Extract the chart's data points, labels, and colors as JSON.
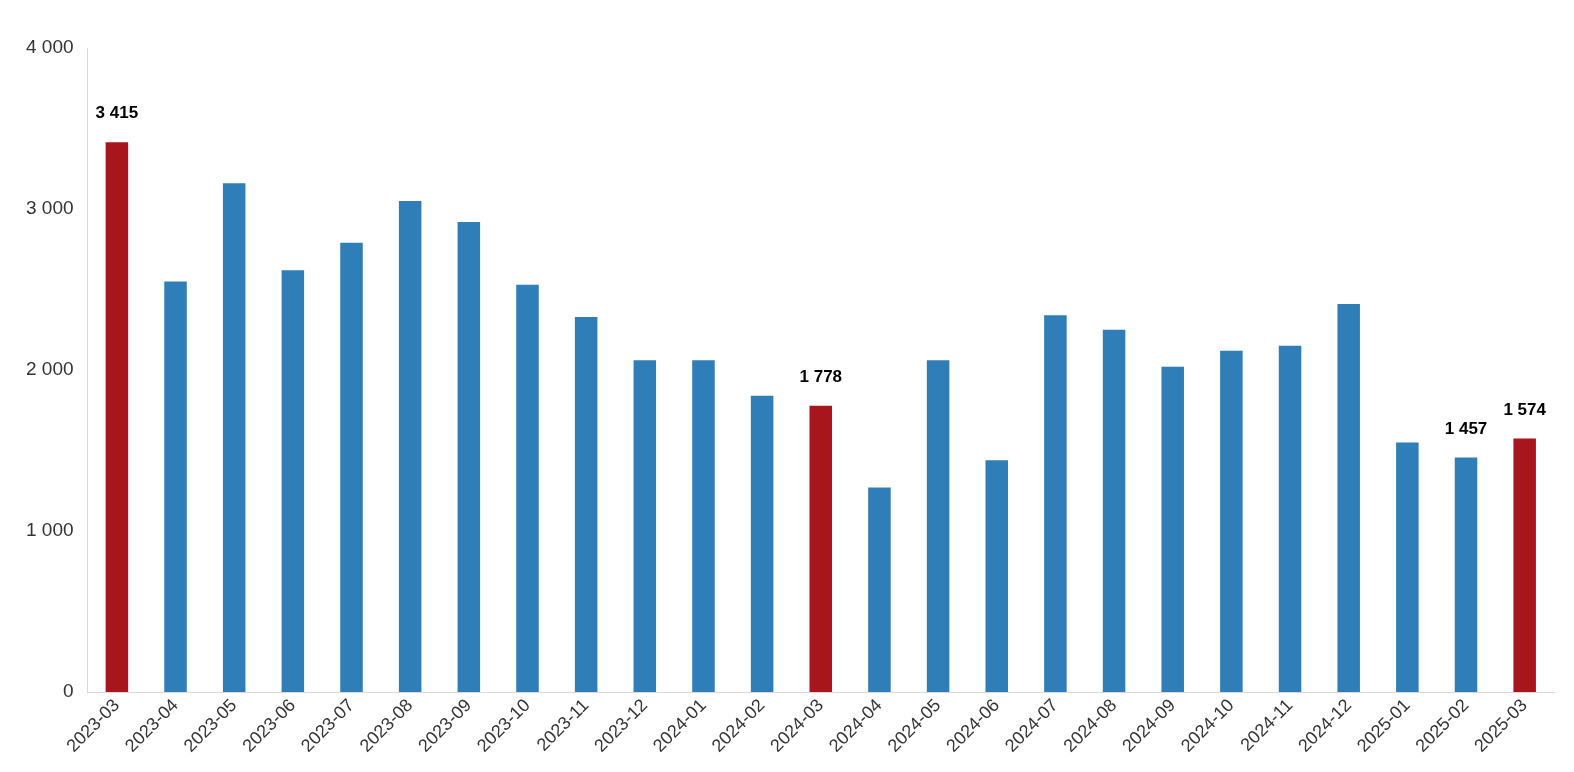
{
  "chart_data": {
    "type": "bar",
    "categories": [
      "2023-03",
      "2023-04",
      "2023-05",
      "2023-06",
      "2023-07",
      "2023-08",
      "2023-09",
      "2023-10",
      "2023-11",
      "2023-12",
      "2024-01",
      "2024-02",
      "2024-03",
      "2024-04",
      "2024-05",
      "2024-06",
      "2024-07",
      "2024-08",
      "2024-09",
      "2024-10",
      "2024-11",
      "2024-12",
      "2025-01",
      "2025-02",
      "2025-03"
    ],
    "values": [
      3415,
      2550,
      3160,
      2620,
      2790,
      3050,
      2920,
      2530,
      2330,
      2060,
      2060,
      1840,
      1778,
      1270,
      2060,
      1440,
      2340,
      2250,
      2020,
      2120,
      2150,
      2410,
      1550,
      1457,
      1574
    ],
    "colors": [
      "#a8151c",
      "#2f7eb8",
      "#2f7eb8",
      "#2f7eb8",
      "#2f7eb8",
      "#2f7eb8",
      "#2f7eb8",
      "#2f7eb8",
      "#2f7eb8",
      "#2f7eb8",
      "#2f7eb8",
      "#2f7eb8",
      "#a8151c",
      "#2f7eb8",
      "#2f7eb8",
      "#2f7eb8",
      "#2f7eb8",
      "#2f7eb8",
      "#2f7eb8",
      "#2f7eb8",
      "#2f7eb8",
      "#2f7eb8",
      "#2f7eb8",
      "#2f7eb8",
      "#a8151c"
    ],
    "value_labels": [
      "3 415",
      null,
      null,
      null,
      null,
      null,
      null,
      null,
      null,
      null,
      null,
      null,
      "1 778",
      null,
      null,
      null,
      null,
      null,
      null,
      null,
      null,
      null,
      null,
      "1 457",
      "1 574"
    ],
    "ylim": [
      0,
      4000
    ],
    "yticks": [
      {
        "value": 0,
        "label": "0"
      },
      {
        "value": 1000,
        "label": "1 000"
      },
      {
        "value": 2000,
        "label": "2 000"
      },
      {
        "value": 3000,
        "label": "3 000"
      },
      {
        "value": 4000,
        "label": "4 000"
      }
    ],
    "grid": false,
    "legend": false
  }
}
